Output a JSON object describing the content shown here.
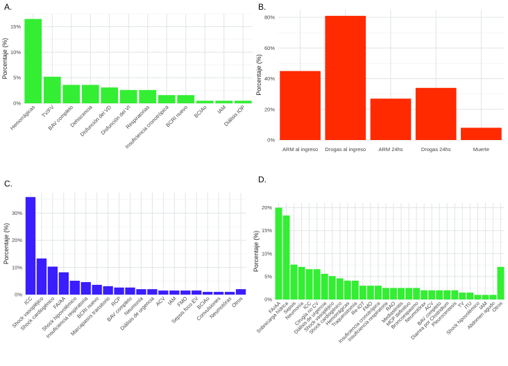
{
  "panels": [
    {
      "letter": "A.",
      "chart_data": {
        "type": "bar",
        "color": "#33ee33",
        "ylabel": "Porcentaje (%)",
        "ylim": [
          0,
          17.5
        ],
        "yticks": [
          0,
          5,
          10,
          15
        ],
        "ytick_labels": [
          "0%",
          "5%",
          "10%",
          "15%"
        ],
        "label_rotation": 45,
        "categories": [
          "Hemorrágicas",
          "TV/FV",
          "BAV completo",
          "Dehiscencia",
          "Disfunción del VD",
          "Disfunción del VI",
          "Respiratorias",
          "Insuficiencia cronotrópica",
          "BCRI nuevo",
          "BCIAo",
          "IAM",
          "Diálisis IOP"
        ],
        "values": [
          16.5,
          5.2,
          3.6,
          3.6,
          3.1,
          2.6,
          2.6,
          1.6,
          1.6,
          0.5,
          0.5,
          0.5
        ]
      }
    },
    {
      "letter": "B.",
      "chart_data": {
        "type": "bar",
        "color": "#ff2a00",
        "ylabel": "Porcentaje (%)",
        "ylim": [
          0,
          85
        ],
        "yticks": [
          0,
          20,
          40,
          60,
          80
        ],
        "ytick_labels": [
          "0%",
          "20%",
          "40%",
          "60%",
          "80%"
        ],
        "label_rotation": 0,
        "categories": [
          "ARM al ingreso",
          "Drogas al ingreso",
          "ARM 24hs",
          "Drogas 24hs",
          "Muerte"
        ],
        "values": [
          45,
          81,
          27,
          34,
          8
        ]
      }
    },
    {
      "letter": "C.",
      "chart_data": {
        "type": "bar",
        "color": "#3a1eff",
        "ylabel": "Porcentaje (%)",
        "ylim": [
          0,
          37.5
        ],
        "yticks": [
          0,
          10,
          20,
          30
        ],
        "ytick_labels": [
          "0%",
          "10%",
          "20%",
          "30%"
        ],
        "label_rotation": 45,
        "categories": [
          "ICC",
          "Shock vasopléjico",
          "Shock cardiogénico",
          "FA/AA",
          "Shock hipovolémico",
          "Insuficiencia respiratoria",
          "BCRI nuevo",
          "Marcapasos transitorio",
          "RCP",
          "BAV completo",
          "Neumonía",
          "Diálisis de urgencia",
          "ACV",
          "IAM",
          "FMO",
          "Sepsis foco EV",
          "BCIAo",
          "Convulsiones",
          "Neumotórax",
          "Otros"
        ],
        "values": [
          35.9,
          13.3,
          10.3,
          8.2,
          5.1,
          4.6,
          3.6,
          3.1,
          2.6,
          2.6,
          2.0,
          2.0,
          1.5,
          1.5,
          1.5,
          1.5,
          1.0,
          1.0,
          1.0,
          2.0
        ]
      }
    },
    {
      "letter": "D.",
      "chart_data": {
        "type": "bar",
        "color": "#33ee33",
        "ylabel": "Porcentaje (%)",
        "ylim": [
          0,
          21
        ],
        "yticks": [
          0,
          5,
          10,
          15,
          20
        ],
        "ytick_labels": [
          "0%",
          "5%",
          "10%",
          "15%",
          "20%"
        ],
        "label_rotation": 45,
        "categories": [
          "FA/AA",
          "Sobrecarga hídrica",
          "Sepsis",
          "Neumonía",
          "ICC",
          "Cirugía no CV",
          "Diálisis de urgencia",
          "Shock vasopléjico",
          "Shock cardiogénico",
          "Hemorrágicas",
          "Traqueostomía",
          "Re-IOT",
          "FMO",
          "Insuficiencia cronotrópica",
          "Insuficiencia respiratoria",
          "RAO",
          "Mediastinitis",
          "MCP definitivo",
          "Broncoespasmo",
          "Neumotórax",
          "ACV",
          "BAV completo",
          "Diarrea por Clostridium",
          "Pleurocentesis",
          "TV",
          "ITU",
          "Shock hipovolémico",
          "IAM",
          "Abdomen agudo",
          "Otros"
        ],
        "values": [
          20.0,
          18.3,
          7.6,
          7.1,
          6.6,
          6.6,
          5.6,
          5.1,
          4.6,
          4.1,
          4.1,
          3.0,
          3.0,
          3.0,
          2.5,
          2.5,
          2.5,
          2.5,
          2.5,
          2.0,
          2.0,
          2.0,
          2.0,
          2.0,
          1.5,
          1.5,
          1.0,
          1.0,
          1.0,
          7.1
        ]
      }
    }
  ]
}
